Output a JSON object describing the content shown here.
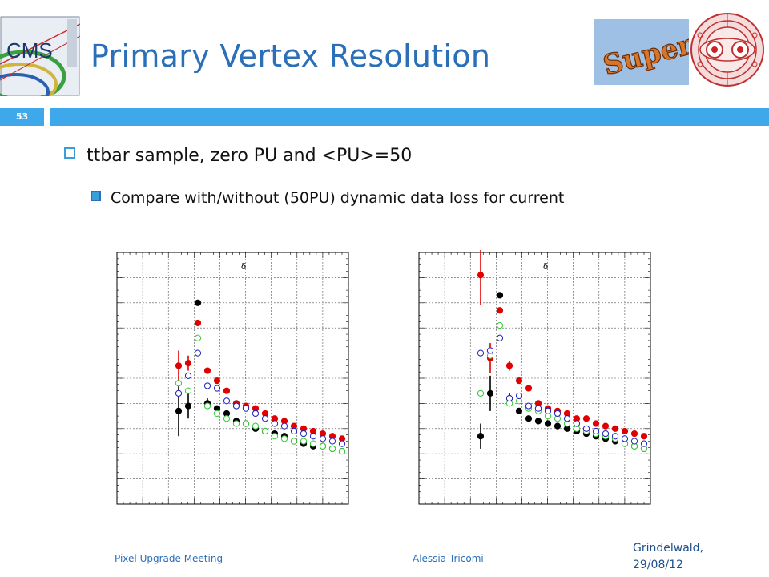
{
  "slide": {
    "title": "Primary Vertex Resolution",
    "slide_number": "53",
    "bullet_main": "ttbar sample, zero PU and <PU>=50",
    "bullet_sub": "Compare with/without (50PU) dynamic data loss for current"
  },
  "footer": {
    "left": "Pixel Upgrade Meeting",
    "center": "Alessia Tricomi",
    "right_line1": "Grindelwald,",
    "right_line2": "29/08/12"
  },
  "logos": {
    "cms": "CMS",
    "super": "Super"
  },
  "colors": {
    "title": "#2a6fb8",
    "accent_bar": "#3ea8ea",
    "series_black": "#000000",
    "series_red": "#e00000",
    "series_green": "#33cc33",
    "series_blue": "#2020c0"
  },
  "chart_data": [
    {
      "type": "scatter",
      "legend_symbol": "δ",
      "series": [
        {
          "marker": "filled-circle",
          "color": "#000000",
          "x": [
            1,
            2,
            3,
            4,
            5,
            6,
            7,
            8,
            9,
            10,
            11,
            12,
            13,
            14,
            15,
            16,
            17,
            18
          ],
          "y": [
            0.63,
            0.61,
            0.2,
            0.6,
            0.62,
            0.64,
            0.67,
            0.68,
            0.7,
            0.71,
            0.72,
            0.73,
            0.75,
            0.76,
            0.77,
            0.77,
            0.78,
            0.79
          ],
          "err": [
            0.1,
            0.05,
            0.0,
            0.02,
            0.01,
            0.01,
            0.01,
            0.01,
            0,
            0,
            0,
            0,
            0,
            0,
            0,
            0,
            0,
            0
          ]
        },
        {
          "marker": "filled-circle",
          "color": "#e00000",
          "x": [
            1,
            2,
            3,
            4,
            5,
            6,
            7,
            8,
            9,
            10,
            11,
            12,
            13,
            14,
            15,
            16,
            17,
            18
          ],
          "y": [
            0.45,
            0.44,
            0.28,
            0.47,
            0.51,
            0.55,
            0.6,
            0.61,
            0.62,
            0.64,
            0.66,
            0.67,
            0.69,
            0.7,
            0.71,
            0.72,
            0.73,
            0.74
          ],
          "err": [
            0.06,
            0.03,
            0.0,
            0.01,
            0.01,
            0.01,
            0,
            0,
            0,
            0,
            0,
            0,
            0,
            0,
            0,
            0,
            0,
            0
          ]
        },
        {
          "marker": "open-circle",
          "color": "#33cc33",
          "x": [
            1,
            2,
            3,
            4,
            5,
            6,
            7,
            8,
            9,
            10,
            11,
            12,
            13,
            14,
            15,
            16,
            17,
            18
          ],
          "y": [
            0.52,
            0.55,
            0.34,
            0.61,
            0.64,
            0.66,
            0.68,
            0.68,
            0.69,
            0.71,
            0.73,
            0.74,
            0.75,
            0.75,
            0.76,
            0.77,
            0.78,
            0.79
          ]
        },
        {
          "marker": "open-circle",
          "color": "#2020c0",
          "x": [
            1,
            2,
            3,
            4,
            5,
            6,
            7,
            8,
            9,
            10,
            11,
            12,
            13,
            14,
            15,
            16,
            17,
            18
          ],
          "y": [
            0.56,
            0.49,
            0.4,
            0.53,
            0.54,
            0.59,
            0.61,
            0.62,
            0.64,
            0.66,
            0.68,
            0.69,
            0.71,
            0.72,
            0.73,
            0.74,
            0.75,
            0.76
          ]
        }
      ]
    },
    {
      "type": "scatter",
      "legend_symbol": "δ",
      "series": [
        {
          "marker": "filled-circle",
          "color": "#000000",
          "x": [
            1,
            2,
            3,
            4,
            5,
            6,
            7,
            8,
            9,
            10,
            11,
            12,
            13,
            14,
            15,
            16,
            17,
            18
          ],
          "y": [
            0.73,
            0.56,
            0.17,
            0.58,
            0.63,
            0.66,
            0.67,
            0.68,
            0.69,
            0.7,
            0.71,
            0.72,
            0.73,
            0.74,
            0.75,
            0.76,
            0.77,
            0.78
          ],
          "err": [
            0.05,
            0.07,
            0.0,
            0.02,
            0.01,
            0.01,
            0,
            0,
            0,
            0,
            0,
            0,
            0,
            0,
            0,
            0,
            0,
            0
          ]
        },
        {
          "marker": "filled-circle",
          "color": "#e00000",
          "x": [
            1,
            2,
            3,
            4,
            5,
            6,
            7,
            8,
            9,
            10,
            11,
            12,
            13,
            14,
            15,
            16,
            17,
            18
          ],
          "y": [
            0.09,
            0.42,
            0.23,
            0.45,
            0.51,
            0.54,
            0.6,
            0.62,
            0.63,
            0.64,
            0.66,
            0.66,
            0.68,
            0.69,
            0.7,
            0.71,
            0.72,
            0.73
          ],
          "err": [
            0.12,
            0.06,
            0,
            0.02,
            0.01,
            0.01,
            0,
            0,
            0,
            0,
            0,
            0,
            0,
            0,
            0,
            0,
            0,
            0
          ]
        },
        {
          "marker": "open-circle",
          "color": "#33cc33",
          "x": [
            1,
            2,
            3,
            4,
            5,
            6,
            7,
            8,
            9,
            10,
            11,
            12,
            13,
            14,
            15,
            16,
            17,
            18
          ],
          "y": [
            0.56,
            0.41,
            0.29,
            0.6,
            0.59,
            0.62,
            0.63,
            0.65,
            0.66,
            0.68,
            0.7,
            0.71,
            0.72,
            0.73,
            0.74,
            0.76,
            0.77,
            0.78
          ]
        },
        {
          "marker": "open-circle",
          "color": "#2020c0",
          "x": [
            1,
            2,
            3,
            4,
            5,
            6,
            7,
            8,
            9,
            10,
            11,
            12,
            13,
            14,
            15,
            16,
            17,
            18
          ],
          "y": [
            0.4,
            0.39,
            0.34,
            0.58,
            0.57,
            0.61,
            0.62,
            0.63,
            0.64,
            0.66,
            0.68,
            0.7,
            0.71,
            0.72,
            0.73,
            0.74,
            0.75,
            0.76
          ]
        }
      ]
    }
  ]
}
